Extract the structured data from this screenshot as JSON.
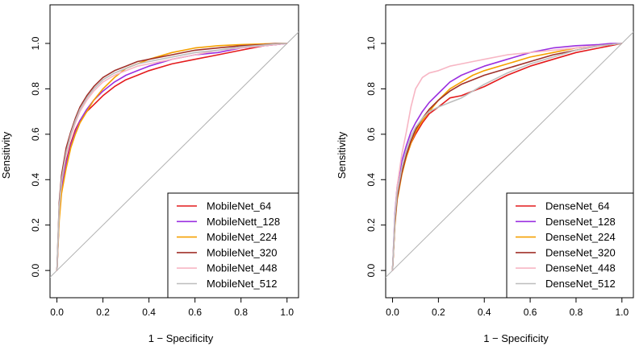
{
  "chart_data": [
    {
      "type": "line",
      "xlabel": "1 − Specificity",
      "ylabel": "Sensitivity",
      "xlim": [
        -0.03,
        1.05
      ],
      "ylim": [
        -0.12,
        1.17
      ],
      "xticks": [
        "0.0",
        "0.2",
        "0.4",
        "0.6",
        "0.8",
        "1.0"
      ],
      "yticks": [
        "0.0",
        "0.2",
        "0.4",
        "0.6",
        "0.8",
        "1.0"
      ],
      "grid": false,
      "legend": "bottom-right",
      "diagonal": true,
      "series": [
        {
          "name": "MobileNet_64",
          "color": "#e41a1c",
          "x": [
            0,
            0.01,
            0.02,
            0.04,
            0.06,
            0.08,
            0.1,
            0.13,
            0.16,
            0.2,
            0.25,
            0.3,
            0.35,
            0.4,
            0.5,
            0.6,
            0.7,
            0.8,
            0.9,
            0.95,
            1.0
          ],
          "y": [
            0,
            0.25,
            0.38,
            0.48,
            0.56,
            0.62,
            0.66,
            0.7,
            0.73,
            0.77,
            0.81,
            0.84,
            0.86,
            0.88,
            0.91,
            0.93,
            0.95,
            0.97,
            0.99,
            0.995,
            1.0
          ]
        },
        {
          "name": "MobileNett_128",
          "color": "#9b30e0",
          "x": [
            0,
            0.01,
            0.02,
            0.04,
            0.06,
            0.08,
            0.1,
            0.13,
            0.16,
            0.2,
            0.25,
            0.3,
            0.35,
            0.4,
            0.5,
            0.6,
            0.7,
            0.8,
            0.9,
            0.95,
            1.0
          ],
          "y": [
            0,
            0.24,
            0.36,
            0.47,
            0.55,
            0.61,
            0.66,
            0.71,
            0.75,
            0.79,
            0.83,
            0.86,
            0.88,
            0.9,
            0.93,
            0.95,
            0.96,
            0.98,
            0.99,
            0.995,
            1.0
          ]
        },
        {
          "name": "MobileNet_224",
          "color": "#f5a000",
          "x": [
            0,
            0.01,
            0.02,
            0.04,
            0.06,
            0.08,
            0.1,
            0.13,
            0.16,
            0.2,
            0.25,
            0.3,
            0.35,
            0.4,
            0.5,
            0.6,
            0.7,
            0.8,
            0.9,
            0.95,
            1.0
          ],
          "y": [
            0,
            0.22,
            0.34,
            0.45,
            0.54,
            0.6,
            0.65,
            0.7,
            0.75,
            0.8,
            0.85,
            0.89,
            0.91,
            0.93,
            0.96,
            0.98,
            0.99,
            0.995,
            0.998,
            1.0,
            1.0
          ]
        },
        {
          "name": "MobileNet_320",
          "color": "#a0302a",
          "x": [
            0,
            0.01,
            0.02,
            0.04,
            0.06,
            0.08,
            0.1,
            0.13,
            0.16,
            0.2,
            0.25,
            0.3,
            0.35,
            0.4,
            0.5,
            0.6,
            0.7,
            0.8,
            0.9,
            0.95,
            1.0
          ],
          "y": [
            0,
            0.3,
            0.42,
            0.54,
            0.61,
            0.67,
            0.72,
            0.77,
            0.81,
            0.85,
            0.88,
            0.9,
            0.92,
            0.93,
            0.95,
            0.97,
            0.98,
            0.99,
            0.995,
            1.0,
            1.0
          ]
        },
        {
          "name": "MobileNet_448",
          "color": "#f7b6c4",
          "x": [
            0,
            0.01,
            0.02,
            0.04,
            0.06,
            0.08,
            0.1,
            0.13,
            0.16,
            0.2,
            0.25,
            0.3,
            0.35,
            0.4,
            0.5,
            0.6,
            0.7,
            0.8,
            0.9,
            0.95,
            1.0
          ],
          "y": [
            0,
            0.27,
            0.39,
            0.51,
            0.59,
            0.65,
            0.7,
            0.75,
            0.79,
            0.83,
            0.86,
            0.88,
            0.9,
            0.91,
            0.93,
            0.95,
            0.97,
            0.98,
            0.99,
            0.995,
            1.0
          ]
        },
        {
          "name": "MobileNet_512",
          "color": "#bdbdbd",
          "x": [
            0,
            0.01,
            0.02,
            0.04,
            0.06,
            0.08,
            0.1,
            0.13,
            0.16,
            0.2,
            0.25,
            0.3,
            0.35,
            0.4,
            0.5,
            0.6,
            0.7,
            0.8,
            0.9,
            0.95,
            1.0
          ],
          "y": [
            0,
            0.28,
            0.4,
            0.52,
            0.6,
            0.66,
            0.71,
            0.76,
            0.8,
            0.84,
            0.87,
            0.89,
            0.91,
            0.92,
            0.94,
            0.96,
            0.97,
            0.985,
            0.993,
            0.998,
            1.0
          ]
        }
      ]
    },
    {
      "type": "line",
      "xlabel": "1 − Specificity",
      "ylabel": "Sensitivity",
      "xlim": [
        -0.03,
        1.05
      ],
      "ylim": [
        -0.12,
        1.17
      ],
      "xticks": [
        "0.0",
        "0.2",
        "0.4",
        "0.6",
        "0.8",
        "1.0"
      ],
      "yticks": [
        "0.0",
        "0.2",
        "0.4",
        "0.6",
        "0.8",
        "1.0"
      ],
      "grid": false,
      "legend": "bottom-right",
      "diagonal": true,
      "series": [
        {
          "name": "DenseNet_64",
          "color": "#e41a1c",
          "x": [
            0,
            0.01,
            0.02,
            0.04,
            0.06,
            0.08,
            0.1,
            0.13,
            0.16,
            0.2,
            0.25,
            0.3,
            0.35,
            0.4,
            0.5,
            0.6,
            0.7,
            0.8,
            0.9,
            0.95,
            1.0
          ],
          "y": [
            0,
            0.22,
            0.33,
            0.43,
            0.5,
            0.56,
            0.6,
            0.65,
            0.69,
            0.72,
            0.76,
            0.77,
            0.79,
            0.81,
            0.86,
            0.9,
            0.93,
            0.96,
            0.98,
            0.99,
            1.0
          ]
        },
        {
          "name": "DenseNet_128",
          "color": "#9b30e0",
          "x": [
            0,
            0.01,
            0.02,
            0.04,
            0.06,
            0.08,
            0.1,
            0.13,
            0.16,
            0.2,
            0.25,
            0.3,
            0.35,
            0.4,
            0.5,
            0.6,
            0.7,
            0.8,
            0.9,
            0.95,
            1.0
          ],
          "y": [
            0,
            0.25,
            0.37,
            0.48,
            0.55,
            0.61,
            0.65,
            0.7,
            0.74,
            0.78,
            0.83,
            0.86,
            0.88,
            0.9,
            0.93,
            0.96,
            0.98,
            0.99,
            0.995,
            1.0,
            1.0
          ]
        },
        {
          "name": "DenseNet_224",
          "color": "#f5a000",
          "x": [
            0,
            0.01,
            0.02,
            0.04,
            0.06,
            0.08,
            0.1,
            0.13,
            0.16,
            0.2,
            0.25,
            0.3,
            0.35,
            0.4,
            0.5,
            0.6,
            0.7,
            0.8,
            0.9,
            0.95,
            1.0
          ],
          "y": [
            0,
            0.2,
            0.31,
            0.42,
            0.5,
            0.56,
            0.61,
            0.66,
            0.7,
            0.75,
            0.8,
            0.83,
            0.86,
            0.88,
            0.91,
            0.94,
            0.96,
            0.98,
            0.99,
            0.995,
            1.0
          ]
        },
        {
          "name": "DenseNet_320",
          "color": "#a0302a",
          "x": [
            0,
            0.01,
            0.02,
            0.04,
            0.06,
            0.08,
            0.1,
            0.13,
            0.16,
            0.2,
            0.25,
            0.3,
            0.35,
            0.4,
            0.5,
            0.6,
            0.7,
            0.8,
            0.9,
            0.95,
            1.0
          ],
          "y": [
            0,
            0.21,
            0.32,
            0.43,
            0.51,
            0.57,
            0.62,
            0.67,
            0.71,
            0.75,
            0.79,
            0.82,
            0.84,
            0.86,
            0.89,
            0.92,
            0.95,
            0.97,
            0.99,
            0.995,
            1.0
          ]
        },
        {
          "name": "DenseNet_448",
          "color": "#f7b6c4",
          "x": [
            0,
            0.01,
            0.02,
            0.04,
            0.06,
            0.08,
            0.1,
            0.13,
            0.16,
            0.2,
            0.25,
            0.3,
            0.35,
            0.4,
            0.5,
            0.6,
            0.7,
            0.8,
            0.9,
            0.95,
            1.0
          ],
          "y": [
            0,
            0.24,
            0.37,
            0.51,
            0.61,
            0.72,
            0.8,
            0.85,
            0.87,
            0.88,
            0.9,
            0.91,
            0.92,
            0.93,
            0.95,
            0.96,
            0.97,
            0.98,
            0.99,
            0.995,
            1.0
          ]
        },
        {
          "name": "DenseNet_512",
          "color": "#bdbdbd",
          "x": [
            0,
            0.01,
            0.02,
            0.04,
            0.06,
            0.08,
            0.1,
            0.13,
            0.16,
            0.2,
            0.25,
            0.3,
            0.35,
            0.4,
            0.5,
            0.6,
            0.7,
            0.8,
            0.9,
            0.95,
            1.0
          ],
          "y": [
            0,
            0.23,
            0.34,
            0.45,
            0.53,
            0.59,
            0.63,
            0.67,
            0.7,
            0.72,
            0.74,
            0.76,
            0.79,
            0.82,
            0.87,
            0.91,
            0.94,
            0.97,
            0.99,
            0.995,
            1.0
          ]
        }
      ]
    }
  ]
}
